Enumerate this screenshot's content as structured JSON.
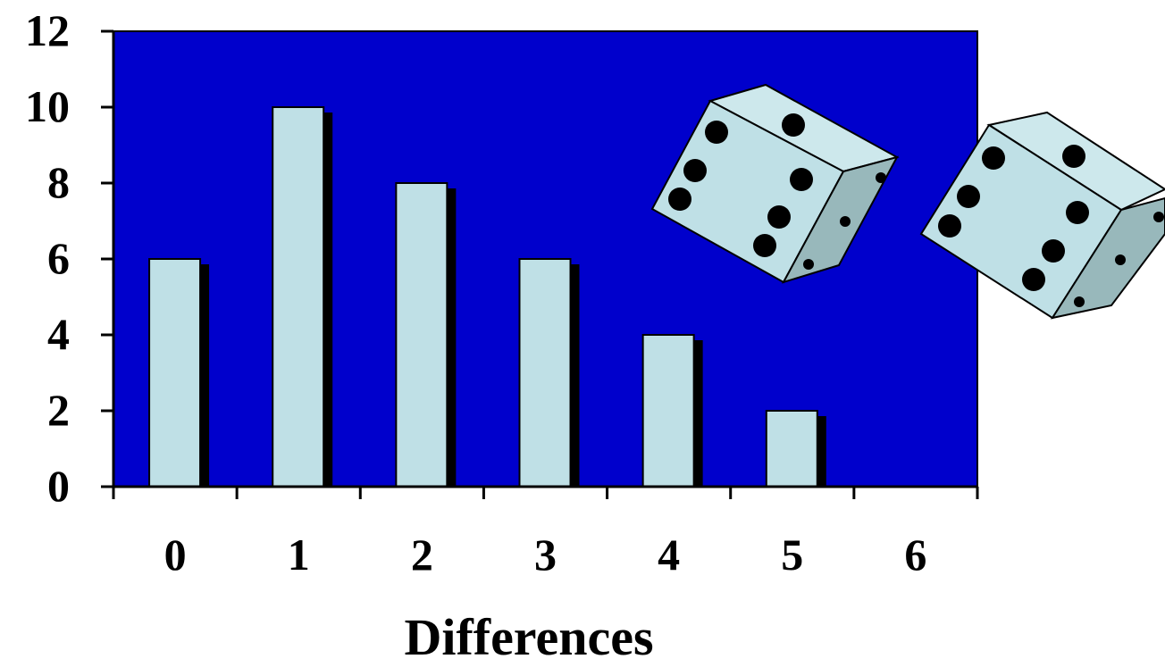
{
  "chart_data": {
    "type": "bar",
    "categories": [
      "0",
      "1",
      "2",
      "3",
      "4",
      "5",
      "6"
    ],
    "values": [
      6,
      10,
      8,
      6,
      4,
      2,
      0
    ],
    "title": "",
    "xlabel": "Differences",
    "ylabel": "",
    "ylim": [
      0,
      12
    ],
    "yticks": [
      "0",
      "2",
      "4",
      "6",
      "8",
      "10",
      "12"
    ],
    "grid": false,
    "legend": "none"
  },
  "colors": {
    "plot_background": "#0000cc",
    "bar_fill": "#bfe0e6",
    "bar_shadow": "#000000",
    "die_face": "#bfe0e6",
    "die_top": "#cde8ec",
    "die_side": "#98b8bb",
    "pip": "#000000"
  },
  "decoration": {
    "icons": [
      "die-icon",
      "die-icon"
    ]
  }
}
